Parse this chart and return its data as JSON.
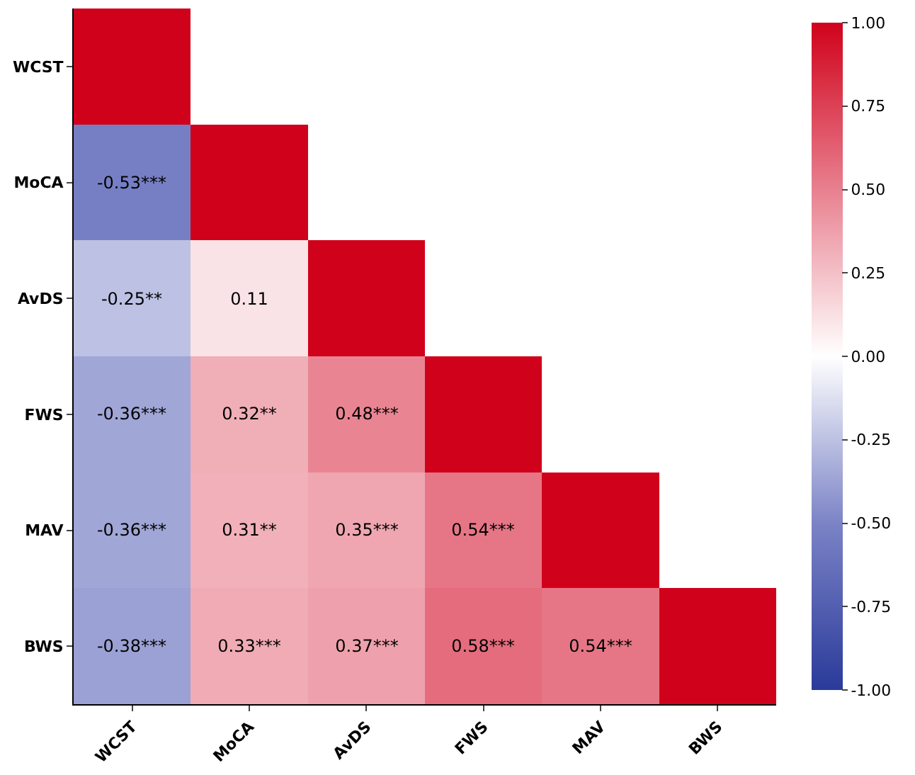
{
  "chart_data": {
    "type": "heatmap",
    "categories": [
      "WCST",
      "MoCA",
      "AvDS",
      "FWS",
      "MAV",
      "BWS"
    ],
    "y_categories": [
      "WCST",
      "MoCA",
      "AvDS",
      "FWS",
      "MAV",
      "BWS"
    ],
    "cells": [
      [
        1,
        null,
        null,
        null,
        null,
        null
      ],
      [
        -0.53,
        1,
        null,
        null,
        null,
        null
      ],
      [
        -0.25,
        0.11,
        1,
        null,
        null,
        null
      ],
      [
        -0.36,
        0.32,
        0.48,
        1,
        null,
        null
      ],
      [
        -0.36,
        0.31,
        0.35,
        0.54,
        1,
        null
      ],
      [
        -0.38,
        0.33,
        0.37,
        0.58,
        0.54,
        1
      ]
    ],
    "cell_labels": [
      [
        null,
        null,
        null,
        null,
        null,
        null
      ],
      [
        "-0.53***",
        null,
        null,
        null,
        null,
        null
      ],
      [
        "-0.25**",
        "0.11",
        null,
        null,
        null,
        null
      ],
      [
        "-0.36***",
        "0.32**",
        "0.48***",
        null,
        null,
        null
      ],
      [
        "-0.36***",
        "0.31**",
        "0.35***",
        "0.54***",
        null,
        null
      ],
      [
        "-0.38***",
        "0.33***",
        "0.37***",
        "0.58***",
        "0.54***",
        null
      ]
    ],
    "clim": [
      -1,
      1
    ],
    "cticks": [
      {
        "value": -1,
        "label": "-1.00"
      },
      {
        "value": -0.75,
        "label": "-0.75"
      },
      {
        "value": -0.5,
        "label": "-0.50"
      },
      {
        "value": -0.25,
        "label": "-0.25"
      },
      {
        "value": 0,
        "label": "0.00"
      },
      {
        "value": 0.25,
        "label": "0.25"
      },
      {
        "value": 0.5,
        "label": "0.50"
      },
      {
        "value": 0.75,
        "label": "0.75"
      },
      {
        "value": 1,
        "label": "1.00"
      }
    ]
  }
}
